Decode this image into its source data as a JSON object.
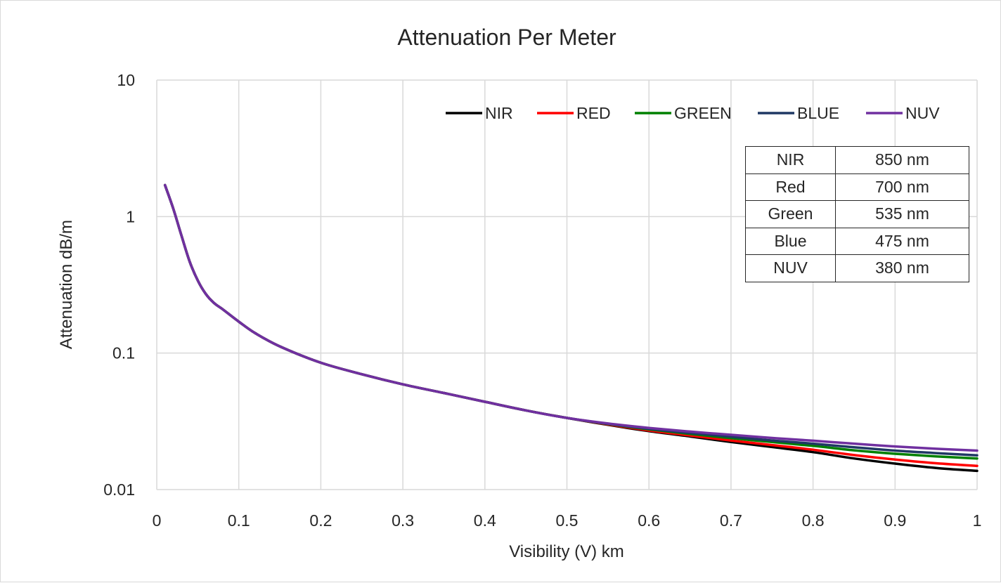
{
  "chart_data": {
    "type": "line",
    "title": "Attenuation Per Meter",
    "xlabel": "Visibility (V) km",
    "ylabel": "Attenuation dB/m",
    "xlim": [
      0,
      1
    ],
    "ylim": [
      0.01,
      10
    ],
    "yscale": "log",
    "grid": true,
    "legend_position": "top-right",
    "x_ticks": [
      "0",
      "0.1",
      "0.2",
      "0.3",
      "0.4",
      "0.5",
      "0.6",
      "0.7",
      "0.8",
      "0.9",
      "1"
    ],
    "y_ticks": [
      "0.01",
      "0.1",
      "1",
      "10"
    ],
    "x": [
      0.01,
      0.02,
      0.03,
      0.04,
      0.05,
      0.06,
      0.07,
      0.08,
      0.1,
      0.12,
      0.15,
      0.2,
      0.25,
      0.3,
      0.35,
      0.4,
      0.45,
      0.5,
      0.55,
      0.6,
      0.65,
      0.7,
      0.75,
      0.8,
      0.85,
      0.9,
      0.95,
      1.0
    ],
    "series": [
      {
        "name": "NIR",
        "color": "#000000",
        "values": [
          1.7,
          1.15,
          0.73,
          0.47,
          0.34,
          0.27,
          0.232,
          0.21,
          0.17,
          0.14,
          0.112,
          0.085,
          0.07,
          0.059,
          0.051,
          0.044,
          0.038,
          0.0335,
          0.0298,
          0.0268,
          0.0245,
          0.0223,
          0.0205,
          0.0188,
          0.0169,
          0.0155,
          0.0144,
          0.0137
        ]
      },
      {
        "name": "RED",
        "color": "#ff0000",
        "values": [
          1.7,
          1.15,
          0.73,
          0.47,
          0.34,
          0.27,
          0.232,
          0.21,
          0.17,
          0.14,
          0.112,
          0.085,
          0.07,
          0.059,
          0.051,
          0.044,
          0.038,
          0.0335,
          0.03,
          0.0271,
          0.0249,
          0.0229,
          0.0212,
          0.0196,
          0.0179,
          0.0166,
          0.0156,
          0.0149
        ]
      },
      {
        "name": "GREEN",
        "color": "#008000",
        "values": [
          1.7,
          1.15,
          0.73,
          0.47,
          0.34,
          0.27,
          0.232,
          0.21,
          0.17,
          0.14,
          0.112,
          0.085,
          0.07,
          0.059,
          0.051,
          0.044,
          0.038,
          0.0335,
          0.0302,
          0.0276,
          0.0256,
          0.0238,
          0.0223,
          0.0209,
          0.0194,
          0.0183,
          0.0175,
          0.0169
        ]
      },
      {
        "name": "BLUE",
        "color": "#1f3864",
        "values": [
          1.7,
          1.15,
          0.73,
          0.47,
          0.34,
          0.27,
          0.232,
          0.21,
          0.17,
          0.14,
          0.112,
          0.085,
          0.07,
          0.059,
          0.051,
          0.044,
          0.038,
          0.0335,
          0.0303,
          0.0279,
          0.026,
          0.0244,
          0.0229,
          0.0217,
          0.0204,
          0.0193,
          0.0185,
          0.0178
        ]
      },
      {
        "name": "NUV",
        "color": "#7030a0",
        "values": [
          1.7,
          1.15,
          0.73,
          0.47,
          0.34,
          0.27,
          0.232,
          0.21,
          0.17,
          0.14,
          0.112,
          0.085,
          0.07,
          0.059,
          0.051,
          0.044,
          0.038,
          0.0335,
          0.0305,
          0.0283,
          0.0266,
          0.0252,
          0.0239,
          0.0228,
          0.0217,
          0.0207,
          0.0199,
          0.0193
        ]
      }
    ],
    "table": {
      "rows": [
        [
          "NIR",
          "850 nm"
        ],
        [
          "Red",
          "700 nm"
        ],
        [
          "Green",
          "535 nm"
        ],
        [
          "Blue",
          "475 nm"
        ],
        [
          "NUV",
          "380 nm"
        ]
      ]
    }
  }
}
